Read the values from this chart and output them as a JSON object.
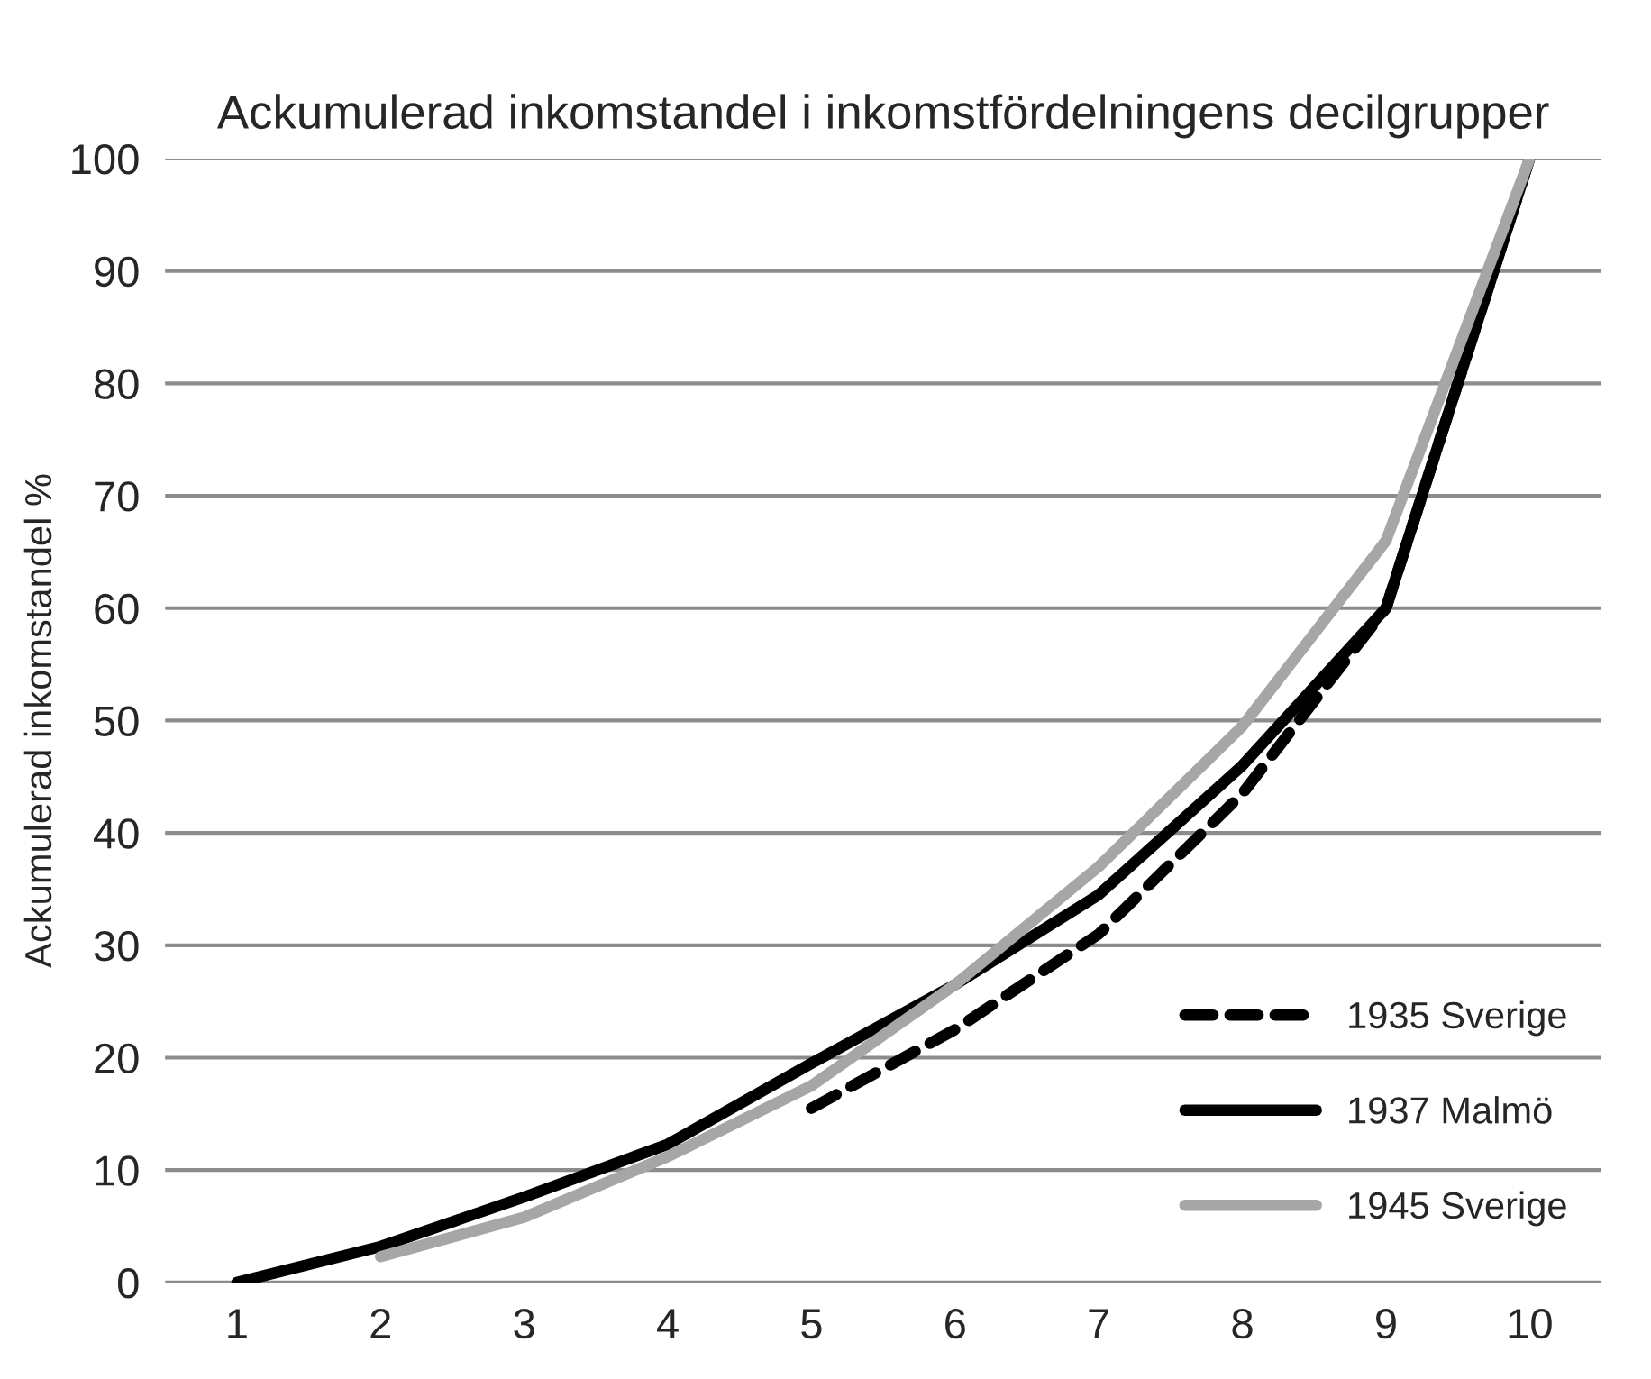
{
  "chart_data": {
    "type": "line",
    "title": "Ackumulerad inkomstandel i inkomstfördelningens decilgrupper",
    "ylabel": "Ackumulerad inkomstandel %",
    "categories": [
      "1",
      "2",
      "3",
      "4",
      "5",
      "6",
      "7",
      "8",
      "9",
      "10"
    ],
    "series": [
      {
        "name": "1935 Sverige",
        "color": "#000000",
        "line_style": "dashed",
        "values": [
          null,
          null,
          null,
          null,
          15.5,
          22.5,
          31,
          43.5,
          60,
          100
        ]
      },
      {
        "name": "1937 Malmö",
        "color": "#000000",
        "line_style": "solid",
        "values": [
          0,
          3.2,
          7.6,
          12.3,
          19.5,
          26.5,
          34.5,
          46,
          60,
          100
        ]
      },
      {
        "name": "1945 Sverige",
        "color": "#a6a6a6",
        "line_style": "solid",
        "values": [
          null,
          2.3,
          5.8,
          11.2,
          17.5,
          26.5,
          37,
          49.5,
          66,
          100
        ]
      }
    ],
    "ylim": [
      0,
      100
    ],
    "yticks": [
      0,
      10,
      20,
      30,
      40,
      50,
      60,
      70,
      80,
      90,
      100
    ],
    "grid": "y",
    "legend": "bottom right",
    "marker": "none"
  }
}
